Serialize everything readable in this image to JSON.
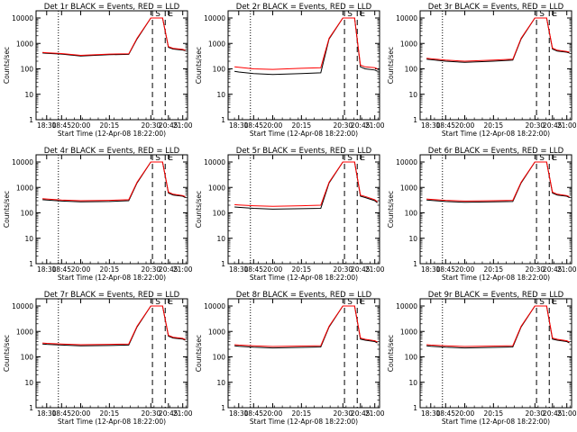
{
  "chart_data": {
    "type": "line",
    "shared": {
      "ylabel": "Counts/sec",
      "xlabel": "Start Time (12-Apr-08 18:22:00)",
      "x_ticks": [
        "18:30",
        "18:45",
        "20:00",
        "20:15",
        "20:30",
        "20:45",
        "21:00"
      ],
      "y_ticks": [
        "1",
        "10",
        "100",
        "1000",
        "10000"
      ],
      "y_scale": "log",
      "ylim": [
        1,
        10000
      ],
      "marker_labels": [
        "S",
        "E"
      ],
      "series": [
        {
          "color": "#000000"
        },
        {
          "color": "#ff0000"
        }
      ]
    },
    "panels": [
      {
        "title": "Det 1r  BLACK = Events, RED = LLD",
        "points": [
          "18:22",
          "18:30",
          "18:45",
          "20:00",
          "20:15",
          "20:22",
          "20:25",
          "20:30",
          "20:40",
          "20:45",
          "20:50",
          "21:00",
          "21:05"
        ],
        "black": [
          420,
          410,
          380,
          320,
          360,
          370,
          1500,
          12000,
          12000,
          700,
          600,
          550,
          520
        ],
        "red": [
          440,
          430,
          400,
          340,
          380,
          390,
          1600,
          12000,
          12000,
          750,
          640,
          580,
          540
        ]
      },
      {
        "title": "Det 2r  BLACK = Events, RED = LLD",
        "points": [
          "18:22",
          "18:30",
          "18:45",
          "20:00",
          "20:15",
          "20:22",
          "20:25",
          "20:30",
          "20:40",
          "20:45",
          "20:50",
          "21:00",
          "21:05"
        ],
        "black": [
          80,
          75,
          65,
          60,
          65,
          70,
          1500,
          12000,
          12000,
          120,
          100,
          90,
          80
        ],
        "red": [
          120,
          115,
          100,
          95,
          105,
          110,
          1600,
          12000,
          12000,
          140,
          120,
          110,
          100
        ]
      },
      {
        "title": "Det 3r  BLACK = Events, RED = LLD",
        "points": [
          "18:22",
          "18:30",
          "18:45",
          "20:00",
          "20:15",
          "20:22",
          "20:25",
          "20:30",
          "20:40",
          "20:45",
          "20:50",
          "21:00",
          "21:05"
        ],
        "black": [
          240,
          230,
          200,
          180,
          200,
          220,
          1500,
          12000,
          12000,
          600,
          500,
          450,
          420
        ],
        "red": [
          260,
          250,
          220,
          200,
          220,
          240,
          1600,
          12000,
          12000,
          650,
          540,
          480,
          450
        ]
      },
      {
        "title": "Det 4r  BLACK = Events, RED = LLD",
        "points": [
          "18:22",
          "18:30",
          "18:45",
          "20:00",
          "20:15",
          "20:22",
          "20:25",
          "20:30",
          "20:40",
          "20:45",
          "20:50",
          "21:00",
          "21:05"
        ],
        "black": [
          330,
          320,
          290,
          270,
          280,
          300,
          1500,
          12000,
          12000,
          600,
          500,
          450,
          400
        ],
        "red": [
          360,
          350,
          320,
          300,
          310,
          330,
          1600,
          12000,
          12000,
          650,
          540,
          480,
          430
        ]
      },
      {
        "title": "Det 5r  BLACK = Events, RED = LLD",
        "points": [
          "18:22",
          "18:30",
          "18:45",
          "20:00",
          "20:15",
          "20:22",
          "20:25",
          "20:30",
          "20:40",
          "20:45",
          "20:50",
          "21:00",
          "21:05"
        ],
        "black": [
          170,
          165,
          150,
          140,
          145,
          150,
          1500,
          12000,
          12000,
          450,
          400,
          300,
          250
        ],
        "red": [
          210,
          205,
          190,
          180,
          190,
          200,
          1600,
          12000,
          12000,
          500,
          440,
          330,
          270
        ]
      },
      {
        "title": "Det 6r  BLACK = Events, RED = LLD",
        "points": [
          "18:22",
          "18:30",
          "18:45",
          "20:00",
          "20:15",
          "20:22",
          "20:25",
          "20:30",
          "20:40",
          "20:45",
          "20:50",
          "21:00",
          "21:05"
        ],
        "black": [
          320,
          310,
          280,
          260,
          270,
          280,
          1500,
          12000,
          12000,
          600,
          500,
          450,
          400
        ],
        "red": [
          350,
          340,
          310,
          290,
          300,
          310,
          1600,
          12000,
          12000,
          650,
          540,
          480,
          430
        ]
      },
      {
        "title": "Det 7r  BLACK = Events, RED = LLD",
        "points": [
          "18:22",
          "18:30",
          "18:45",
          "20:00",
          "20:15",
          "20:22",
          "20:25",
          "20:30",
          "20:40",
          "20:45",
          "20:50",
          "21:00",
          "21:05"
        ],
        "black": [
          320,
          310,
          290,
          270,
          280,
          290,
          1500,
          12000,
          12000,
          650,
          550,
          500,
          450
        ],
        "red": [
          350,
          340,
          320,
          300,
          310,
          320,
          1600,
          12000,
          12000,
          700,
          590,
          530,
          480
        ]
      },
      {
        "title": "Det 8r  BLACK = Events, RED = LLD",
        "points": [
          "18:22",
          "18:30",
          "18:45",
          "20:00",
          "20:15",
          "20:22",
          "20:25",
          "20:30",
          "20:40",
          "20:45",
          "20:50",
          "21:00",
          "21:05"
        ],
        "black": [
          270,
          260,
          240,
          225,
          235,
          245,
          1500,
          12000,
          12000,
          500,
          450,
          400,
          350
        ],
        "red": [
          300,
          290,
          270,
          255,
          265,
          275,
          1600,
          12000,
          12000,
          550,
          490,
          430,
          380
        ]
      },
      {
        "title": "Det 9r  BLACK = Events, RED = LLD",
        "points": [
          "18:22",
          "18:30",
          "18:45",
          "20:00",
          "20:15",
          "20:22",
          "20:25",
          "20:30",
          "20:40",
          "20:45",
          "20:50",
          "21:00",
          "21:05"
        ],
        "black": [
          270,
          260,
          240,
          225,
          235,
          245,
          1500,
          12000,
          12000,
          500,
          450,
          400,
          350
        ],
        "red": [
          300,
          290,
          270,
          255,
          265,
          275,
          1600,
          12000,
          12000,
          550,
          490,
          430,
          380
        ]
      }
    ]
  }
}
